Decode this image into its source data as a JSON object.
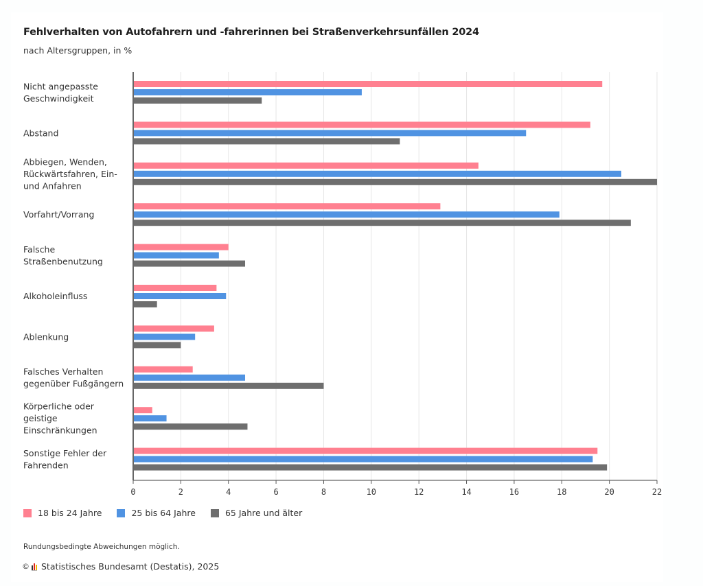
{
  "header": {
    "title": "Fehlverhalten von Autofahrern und -fahrerinnen bei Straßenverkehrsunfällen 2024",
    "subtitle": "nach Altersgruppen, in %"
  },
  "chart_data": {
    "type": "bar",
    "orientation": "horizontal",
    "title": "Fehlverhalten von Autofahrern und -fahrerinnen bei Straßenverkehrsunfällen 2024",
    "subtitle": "nach Altersgruppen, in %",
    "xlabel": "",
    "ylabel": "",
    "xlim": [
      0,
      22
    ],
    "xticks": [
      0,
      2,
      4,
      6,
      8,
      10,
      12,
      14,
      16,
      18,
      20,
      22
    ],
    "grid": true,
    "legend_position": "bottom-left",
    "categories": [
      [
        "Nicht angepasste",
        "Geschwindigkeit"
      ],
      [
        "Abstand"
      ],
      [
        "Abbiegen, Wenden,",
        "Rückwärtsfahren, Ein-",
        "und Anfahren"
      ],
      [
        "Vorfahrt/Vorrang"
      ],
      [
        "Falsche",
        "Straßenbenutzung"
      ],
      [
        "Alkoholeinfluss"
      ],
      [
        "Ablenkung"
      ],
      [
        "Falsches Verhalten",
        "gegenüber Fußgängern"
      ],
      [
        "Körperliche oder",
        "geistige",
        "Einschränkungen"
      ],
      [
        "Sonstige Fehler der",
        "Fahrenden"
      ]
    ],
    "series": [
      {
        "name": "18 bis 24 Jahre",
        "color": "#ff8090",
        "values": [
          19.7,
          19.2,
          14.5,
          12.9,
          4.0,
          3.5,
          3.4,
          2.5,
          0.8,
          19.5
        ]
      },
      {
        "name": "25 bis 64 Jahre",
        "color": "#5093e2",
        "values": [
          9.6,
          16.5,
          20.5,
          17.9,
          3.6,
          3.9,
          2.6,
          4.7,
          1.4,
          19.3
        ]
      },
      {
        "name": "65 Jahre und älter",
        "color": "#6e6e6e",
        "values": [
          5.4,
          11.2,
          22.0,
          20.9,
          4.7,
          1.0,
          2.0,
          8.0,
          4.8,
          19.9
        ]
      }
    ]
  },
  "footer": {
    "note": "Rundungsbedingte Abweichungen möglich.",
    "copyright_symbol": "©",
    "source": "Statistisches Bundesamt (Destatis), 2025"
  }
}
